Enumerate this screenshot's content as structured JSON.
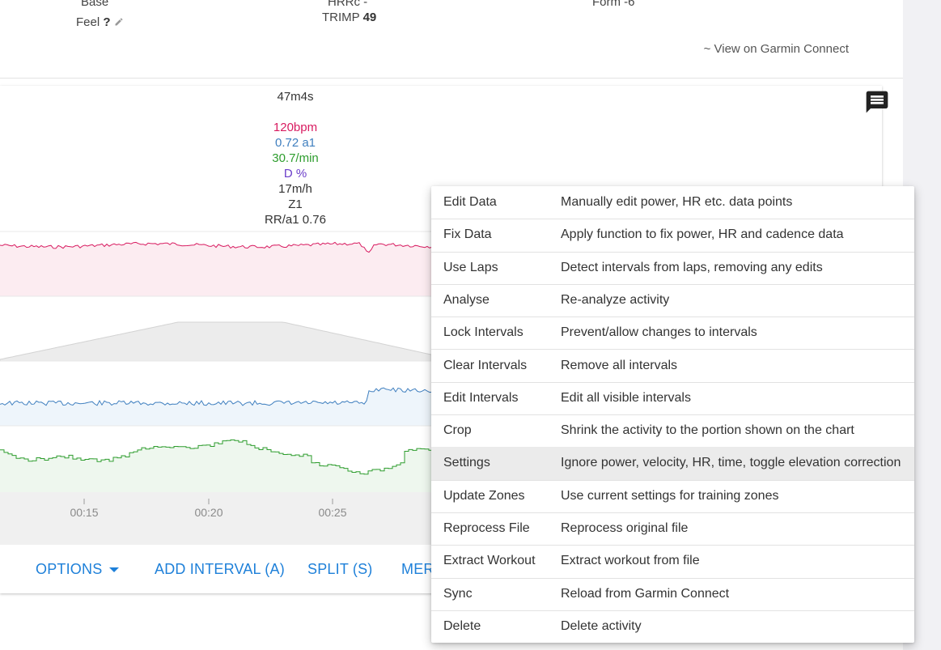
{
  "summary": {
    "col1_top": "Base",
    "feel_label": "Feel",
    "feel_value": "?",
    "col2_top": "HRRc -",
    "trimp_label": "TRIMP",
    "trimp_value": "49",
    "col3_top": "Form -6",
    "garmin_link": "~ View on Garmin Connect"
  },
  "tooltip": {
    "duration": "47m4s",
    "hr": "120bpm",
    "alpha": "0.72 a1",
    "breathing": "30.7/min",
    "decoupling": "D %",
    "elevation_rate": "17m/h",
    "zone": "Z1",
    "rr_alpha": "RR/a1 0.76"
  },
  "axis_ticks": [
    "00:15",
    "00:20",
    "00:25"
  ],
  "toolbar": {
    "options": "OPTIONS",
    "add_interval": "ADD INTERVAL (A)",
    "split": "SPLIT (S)",
    "merge": "MER"
  },
  "menu": [
    {
      "label": "Edit Data",
      "desc": "Manually edit power, HR etc. data points"
    },
    {
      "label": "Fix Data",
      "desc": "Apply function to fix power, HR and cadence data"
    },
    {
      "label": "Use Laps",
      "desc": "Detect intervals from laps, removing any edits"
    },
    {
      "label": "Analyse",
      "desc": "Re-analyze activity"
    },
    {
      "label": "Lock Intervals",
      "desc": "Prevent/allow changes to intervals"
    },
    {
      "label": "Clear Intervals",
      "desc": "Remove all intervals"
    },
    {
      "label": "Edit Intervals",
      "desc": "Edit all visible intervals"
    },
    {
      "label": "Crop",
      "desc": "Shrink the activity to the portion shown on the chart"
    },
    {
      "label": "Settings",
      "desc": "Ignore power, velocity, HR, time, toggle elevation correction"
    },
    {
      "label": "Update Zones",
      "desc": "Use current settings for training zones"
    },
    {
      "label": "Reprocess File",
      "desc": "Reprocess original file"
    },
    {
      "label": "Extract Workout",
      "desc": "Extract workout from file"
    },
    {
      "label": "Sync",
      "desc": "Reload from Garmin Connect"
    },
    {
      "label": "Delete",
      "desc": "Delete activity"
    }
  ],
  "colors": {
    "hr": "#d81b60",
    "alpha": "#3f7fbf",
    "breathing": "#2e9d2e",
    "decoupling": "#6a3dc9",
    "link": "#1e80d9"
  },
  "active_menu_item": "Settings"
}
